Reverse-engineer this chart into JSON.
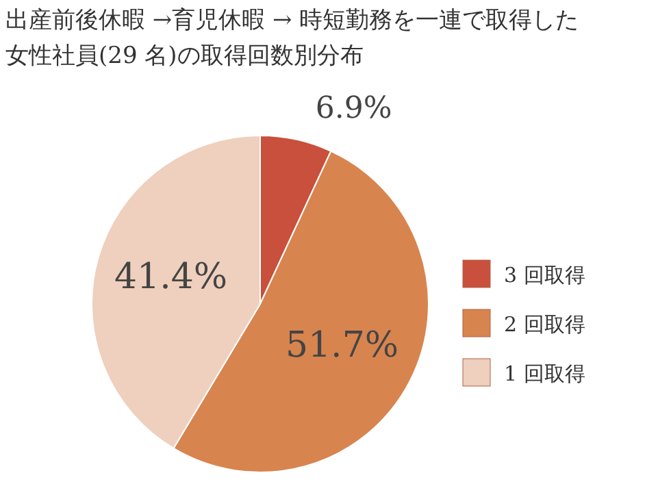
{
  "chart_data": {
    "type": "pie",
    "title": "出産前後休暇 →育児休暇 → 時短勤務を一連で取得した女性社員(29 名)の取得回数別分布",
    "categories": [
      "3 回取得",
      "2 回取得",
      "1 回取得"
    ],
    "values": [
      6.9,
      51.7,
      41.4
    ],
    "colors": [
      "#c9503c",
      "#d8844f",
      "#efcfbd"
    ],
    "value_labels": [
      "6.9%",
      "51.7%",
      "41.4%"
    ],
    "legend": "right"
  }
}
